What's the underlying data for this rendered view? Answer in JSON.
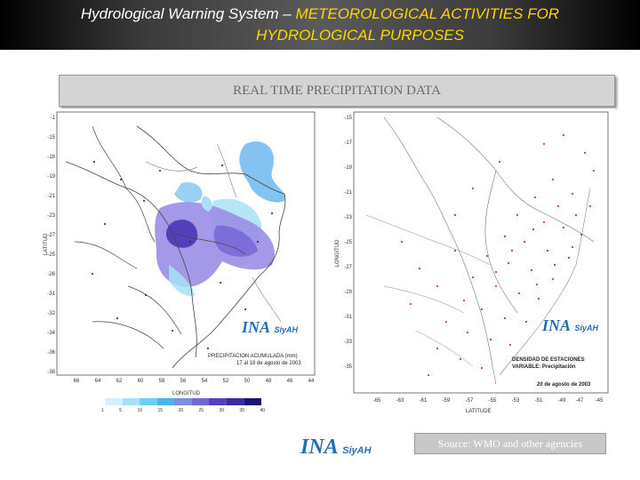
{
  "header": {
    "line1_white": "Hydrological Warning System – ",
    "line1_yellow": "METEOROLOGICAL ACTIVITIES FOR",
    "line2": "HYDROLOGICAL PURPOSES"
  },
  "title": "REAL TIME PRECIPITATION DATA",
  "left_map": {
    "y_axis_label": "LATITUD",
    "x_axis_label": "LONGITUD",
    "lat_ticks": [
      "-1",
      "-15",
      "-18",
      "-19",
      "-21",
      "-23",
      "-27",
      "-25",
      "-26",
      "-31",
      "-32",
      "-34",
      "-36",
      "-38"
    ],
    "lon_ticks": [
      "66",
      "64",
      "62",
      "60",
      "58",
      "56",
      "54",
      "52",
      "50",
      "48",
      "46",
      "44"
    ],
    "caption_line1": "PRECIPITACION ACUMULADA (mm)",
    "caption_line2": "17 al 18 de agosto de 2003",
    "scale_labels": [
      "1",
      "5",
      "10",
      "15",
      "20",
      "25",
      "30",
      "35",
      "40"
    ],
    "scale_colors": [
      "#d6f0fb",
      "#a6e1f5",
      "#6fcff0",
      "#49b7ea",
      "#7b8ee0",
      "#7068d6",
      "#5a3fc4",
      "#3b2aa0",
      "#1c1470"
    ]
  },
  "right_map": {
    "y_axis_label": "LONGITUD",
    "x_axis_label": "LATITUDE",
    "lat_ticks": [
      "-15",
      "-17",
      "-19",
      "-21",
      "-23",
      "-25",
      "-27",
      "-29",
      "-31",
      "-33",
      "-35"
    ],
    "lon_ticks": [
      "-65",
      "-63",
      "-61",
      "-59",
      "-57",
      "-55",
      "-53",
      "-51",
      "-49",
      "-47",
      "-45"
    ],
    "caption_line1": "DENSIDAD DE ESTACIONES",
    "caption_line2": "VARIABLE: Precipitación",
    "caption_line3": "20 de agosto de 2003"
  },
  "logos": {
    "ina": "INA",
    "siyah": "SiyAH"
  },
  "source": "Source: WMO and other agencies"
}
